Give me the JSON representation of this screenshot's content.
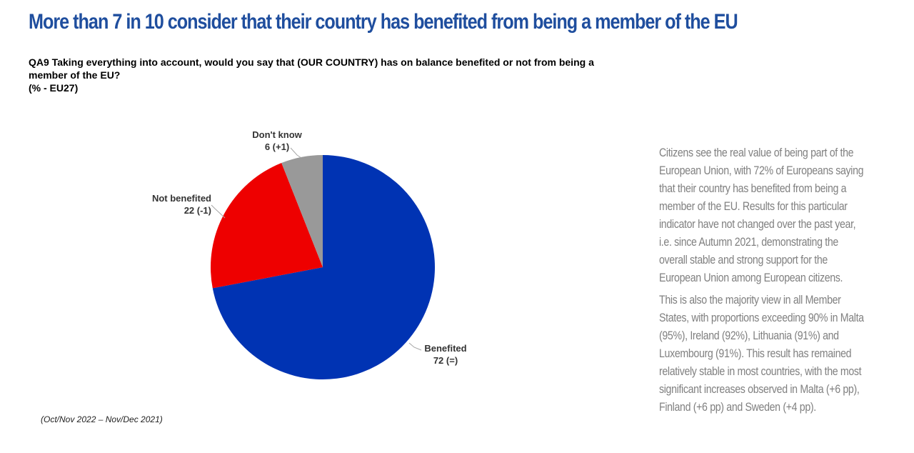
{
  "title": "More than 7 in 10 consider that their country has benefited from being a member of the EU",
  "question": {
    "text": "QA9  Taking everything into account, would you say that (OUR COUNTRY) has on balance benefited or not from being a member of the EU?",
    "unit": "(% - EU27)"
  },
  "chart_data": {
    "type": "pie",
    "title": "",
    "slices": [
      {
        "name": "Benefited",
        "value": 72,
        "change": "72 (=)",
        "color": "#0033b3"
      },
      {
        "name": "Not benefited",
        "value": 22,
        "change": "22 (-1)",
        "color": "#ee0000"
      },
      {
        "name": "Don't know",
        "value": 6,
        "change": "6 (+1)",
        "color": "#999999"
      }
    ],
    "start": "12 o'clock",
    "direction": "clockwise"
  },
  "period_note": "(Oct/Nov 2022 – Nov/Dec 2021)",
  "commentary": {
    "p1": "Citizens see the real value of being part of the European Union, with 72% of Europeans saying that their country has benefited from being a member of the EU. Results for this particular indicator have not changed over the past year, i.e. since Autumn 2021, demonstrating the overall stable and strong support for the European Union among European citizens.",
    "p2": "This is also the majority view in all Member States, with proportions exceeding 90% in Malta (95%), Ireland (92%), Lithuania (91%) and Luxembourg (91%). This result has remained relatively stable in most countries, with the most significant increases observed in Malta (+6 pp), Finland (+6 pp) and Sweden (+4 pp)."
  }
}
